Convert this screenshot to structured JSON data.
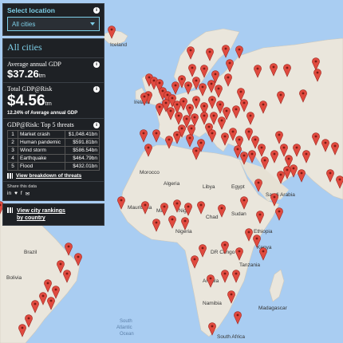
{
  "panel": {
    "select_label": "Select location",
    "select_value": "All cities",
    "title": "All cities",
    "avg_gdp_label": "Average annual GDP",
    "avg_gdp_value": "$37.26",
    "avg_gdp_unit": "trn",
    "risk_label": "Total GDP@Risk",
    "risk_value": "$4.56",
    "risk_unit": "trn",
    "risk_pct": "12.24% of Average annual GDP",
    "threats_title": "GDP@Risk: Top 5 threats",
    "threats": [
      {
        "rank": "1",
        "name": "Market crash",
        "value": "$1,048.41bn"
      },
      {
        "rank": "2",
        "name": "Human pandemic",
        "value": "$591.81bn"
      },
      {
        "rank": "3",
        "name": "Wind storm",
        "value": "$586.54bn"
      },
      {
        "rank": "4",
        "name": "Earthquake",
        "value": "$464.79bn"
      },
      {
        "rank": "5",
        "name": "Flood",
        "value": "$432.01bn"
      }
    ],
    "threats_link": "View breakdown of threats",
    "share_label": "Share this data",
    "share_icons": [
      "in",
      "♥",
      "f",
      "✉"
    ],
    "rankings_line1": "View city rankings",
    "rankings_line2": "by country"
  },
  "map_labels": {
    "iceland": "Iceland",
    "ireland": "Ireland",
    "morocco": "Morocco",
    "algeria": "Algeria",
    "libya": "Libya",
    "egypt": "Egypt",
    "mauritania": "Mauritania",
    "mali": "Mali",
    "niger": "Niger",
    "chad": "Chad",
    "sudan": "Sudan",
    "ethiopia": "Ethiopia",
    "nigeria": "Nigeria",
    "kenya": "Kenya",
    "tanzania": "Tanzania",
    "drc": "DR Congo",
    "angola": "Angola",
    "namibia": "Namibia",
    "south_africa": "South Africa",
    "madagascar": "Madagascar",
    "saudi": "Saudi Arabia",
    "brazil": "Brazil",
    "bolivia": "Bolivia",
    "south_atlantic_1": "South",
    "south_atlantic_2": "Atlantic",
    "south_atlantic_3": "Ocean"
  },
  "colors": {
    "water": "#a9cdf2",
    "land": "#eae6dc",
    "pin": "#e04a3f",
    "accent": "#7ecfe8",
    "panel": "#1e2125"
  }
}
